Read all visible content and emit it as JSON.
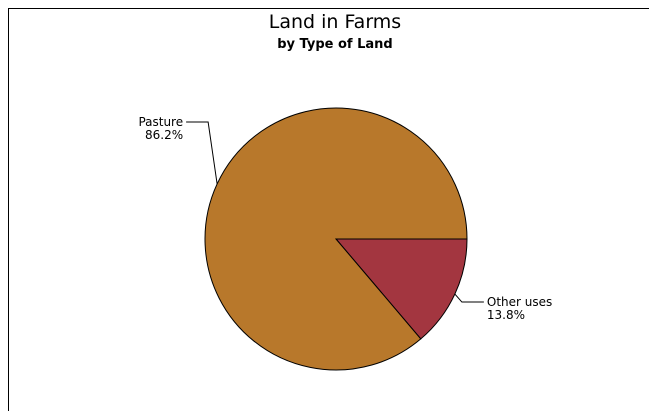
{
  "chart_data": {
    "type": "pie",
    "title": "Land in Farms",
    "subtitle": "by Type of Land",
    "slices": [
      {
        "label": "Pasture",
        "value": 86.2,
        "display": "86.2%",
        "color": "#B8782B"
      },
      {
        "label": "Other uses",
        "value": 13.8,
        "display": "13.8%",
        "color": "#A33640"
      }
    ],
    "start_angle_deg": 0,
    "direction": "clockwise",
    "legend": "none",
    "grid": false
  }
}
